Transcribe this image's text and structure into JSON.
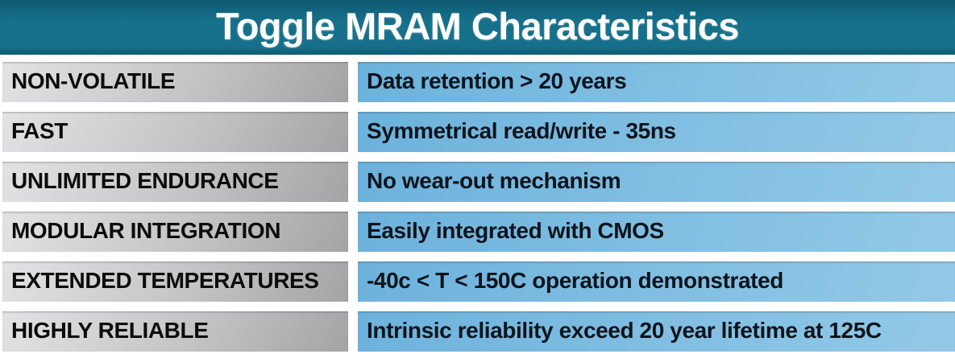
{
  "header": {
    "title": "Toggle MRAM Characteristics"
  },
  "table": {
    "rows": [
      {
        "label": "NON-VOLATILE",
        "value": "Data retention > 20 years"
      },
      {
        "label": "FAST",
        "value": "Symmetrical read/write - 35ns"
      },
      {
        "label": "UNLIMITED ENDURANCE",
        "value": "No wear-out mechanism"
      },
      {
        "label": "MODULAR INTEGRATION",
        "value": "Easily integrated with CMOS"
      },
      {
        "label": "EXTENDED TEMPERATURES",
        "value": "-40c < T < 150C operation demonstrated"
      },
      {
        "label": "HIGHLY RELIABLE",
        "value": "Intrinsic reliability exceed 20 year lifetime at 125C"
      }
    ]
  },
  "colors": {
    "background": "#ffffff",
    "header_bg": "#16708b",
    "header_bg_dark": "#0f5a73",
    "title_text": "#ffffff",
    "label_cell_light": "#e2e3e4",
    "label_cell_dark": "#a2a4a6",
    "label_text": "#0c0c0e",
    "value_cell_dark": "#6cb2dc",
    "value_cell_light": "#93c9e7",
    "value_text": "#0d141c"
  },
  "chart_data": {
    "type": "table",
    "title": "Toggle MRAM Characteristics",
    "rows": [
      [
        "NON-VOLATILE",
        "Data retention > 20 years"
      ],
      [
        "FAST",
        "Symmetrical read/write - 35ns"
      ],
      [
        "UNLIMITED ENDURANCE",
        "No wear-out mechanism"
      ],
      [
        "MODULAR INTEGRATION",
        "Easily integrated with CMOS"
      ],
      [
        "EXTENDED TEMPERATURES",
        "-40c < T < 150C operation demonstrated"
      ],
      [
        "HIGHLY RELIABLE",
        "Intrinsic reliability exceed 20 year lifetime at 125C"
      ]
    ]
  }
}
